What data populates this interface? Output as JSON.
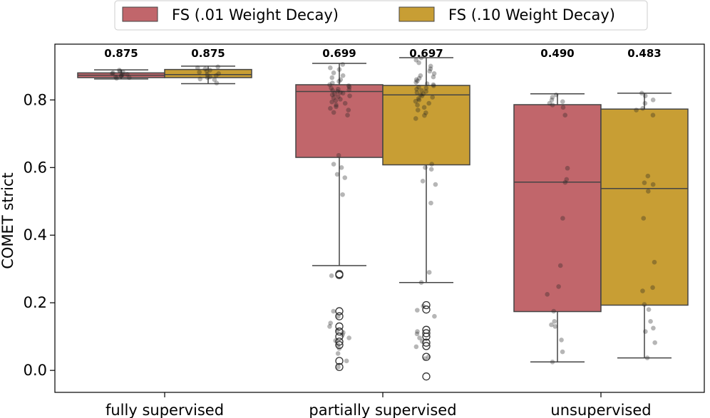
{
  "chart_data": {
    "type": "box",
    "title": "",
    "xlabel": "",
    "ylabel": "COMET strict",
    "ylim": [
      -0.065,
      0.965
    ],
    "yticks": [
      0.0,
      0.2,
      0.4,
      0.6,
      0.8
    ],
    "ytick_labels": [
      "0.0",
      "0.2",
      "0.4",
      "0.6",
      "0.8"
    ],
    "categories": [
      "fully supervised",
      "partially supervised",
      "unsupervised"
    ],
    "legend_position": "top-center",
    "series": [
      {
        "name": "FS (.01 Weight Decay)",
        "color": "#c1666b",
        "boxes": [
          {
            "category": "fully supervised",
            "mean_label": "0.875",
            "whislo": 0.862,
            "q1": 0.866,
            "med": 0.873,
            "q3": 0.88,
            "whishi": 0.889,
            "fliers": [],
            "points": [
              0.87,
              0.875,
              0.88,
              0.868,
              0.885,
              0.872,
              0.878,
              0.866,
              0.882,
              0.888,
              0.864,
              0.876
            ]
          },
          {
            "category": "partially supervised",
            "mean_label": "0.699",
            "whislo": 0.31,
            "q1": 0.63,
            "med": 0.825,
            "q3": 0.845,
            "whishi": 0.908,
            "fliers": [
              0.285,
              0.282,
              0.175,
              0.16,
              0.13,
              0.115,
              0.1,
              0.085,
              0.075,
              0.028,
              0.01
            ],
            "points": [
              0.905,
              0.895,
              0.89,
              0.88,
              0.872,
              0.866,
              0.86,
              0.855,
              0.85,
              0.845,
              0.842,
              0.838,
              0.835,
              0.832,
              0.83,
              0.828,
              0.825,
              0.822,
              0.82,
              0.818,
              0.815,
              0.812,
              0.81,
              0.806,
              0.802,
              0.798,
              0.794,
              0.79,
              0.785,
              0.78,
              0.775,
              0.77,
              0.763,
              0.755,
              0.636,
              0.61,
              0.6,
              0.58,
              0.57,
              0.52,
              0.28,
              0.175,
              0.16,
              0.14,
              0.13,
              0.118,
              0.112,
              0.105,
              0.096,
              0.088,
              0.076,
              0.065,
              0.05,
              0.028,
              0.01
            ]
          },
          {
            "category": "unsupervised",
            "mean_label": "0.490",
            "whislo": 0.025,
            "q1": 0.174,
            "med": 0.557,
            "q3": 0.786,
            "whishi": 0.818,
            "fliers": [],
            "points": [
              0.815,
              0.808,
              0.8,
              0.795,
              0.79,
              0.785,
              0.778,
              0.755,
              0.598,
              0.565,
              0.556,
              0.45,
              0.31,
              0.248,
              0.225,
              0.175,
              0.145,
              0.135,
              0.13,
              0.09,
              0.055,
              0.025
            ]
          }
        ]
      },
      {
        "name": "FS (.10 Weight Decay)",
        "color": "#c89e34",
        "boxes": [
          {
            "category": "fully supervised",
            "mean_label": "0.875",
            "whislo": 0.848,
            "q1": 0.866,
            "med": 0.875,
            "q3": 0.89,
            "whishi": 0.9,
            "fliers": [],
            "points": [
              0.898,
              0.895,
              0.892,
              0.888,
              0.885,
              0.882,
              0.878,
              0.875,
              0.872,
              0.868,
              0.866,
              0.862,
              0.86,
              0.85
            ]
          },
          {
            "category": "partially supervised",
            "mean_label": "0.697",
            "whislo": 0.26,
            "q1": 0.608,
            "med": 0.815,
            "q3": 0.843,
            "whishi": 0.925,
            "fliers": [
              0.193,
              0.18,
              0.12,
              0.11,
              0.1,
              0.082,
              0.072,
              0.04,
              -0.018
            ],
            "points": [
              0.925,
              0.918,
              0.91,
              0.9,
              0.892,
              0.885,
              0.878,
              0.872,
              0.868,
              0.864,
              0.86,
              0.856,
              0.852,
              0.848,
              0.845,
              0.842,
              0.838,
              0.835,
              0.832,
              0.828,
              0.825,
              0.822,
              0.818,
              0.815,
              0.812,
              0.808,
              0.804,
              0.8,
              0.796,
              0.79,
              0.785,
              0.778,
              0.77,
              0.762,
              0.754,
              0.745,
              0.61,
              0.6,
              0.595,
              0.56,
              0.55,
              0.495,
              0.29,
              0.26,
              0.19,
              0.178,
              0.16,
              0.115,
              0.108,
              0.096,
              0.086,
              0.07,
              0.04,
              0.035
            ]
          },
          {
            "category": "unsupervised",
            "mean_label": "0.483",
            "whislo": 0.037,
            "q1": 0.193,
            "med": 0.538,
            "q3": 0.773,
            "whishi": 0.82,
            "fliers": [],
            "points": [
              0.82,
              0.812,
              0.8,
              0.79,
              0.775,
              0.77,
              0.755,
              0.575,
              0.555,
              0.55,
              0.53,
              0.45,
              0.32,
              0.245,
              0.235,
              0.195,
              0.18,
              0.145,
              0.125,
              0.115,
              0.082,
              0.037
            ]
          }
        ]
      }
    ]
  }
}
